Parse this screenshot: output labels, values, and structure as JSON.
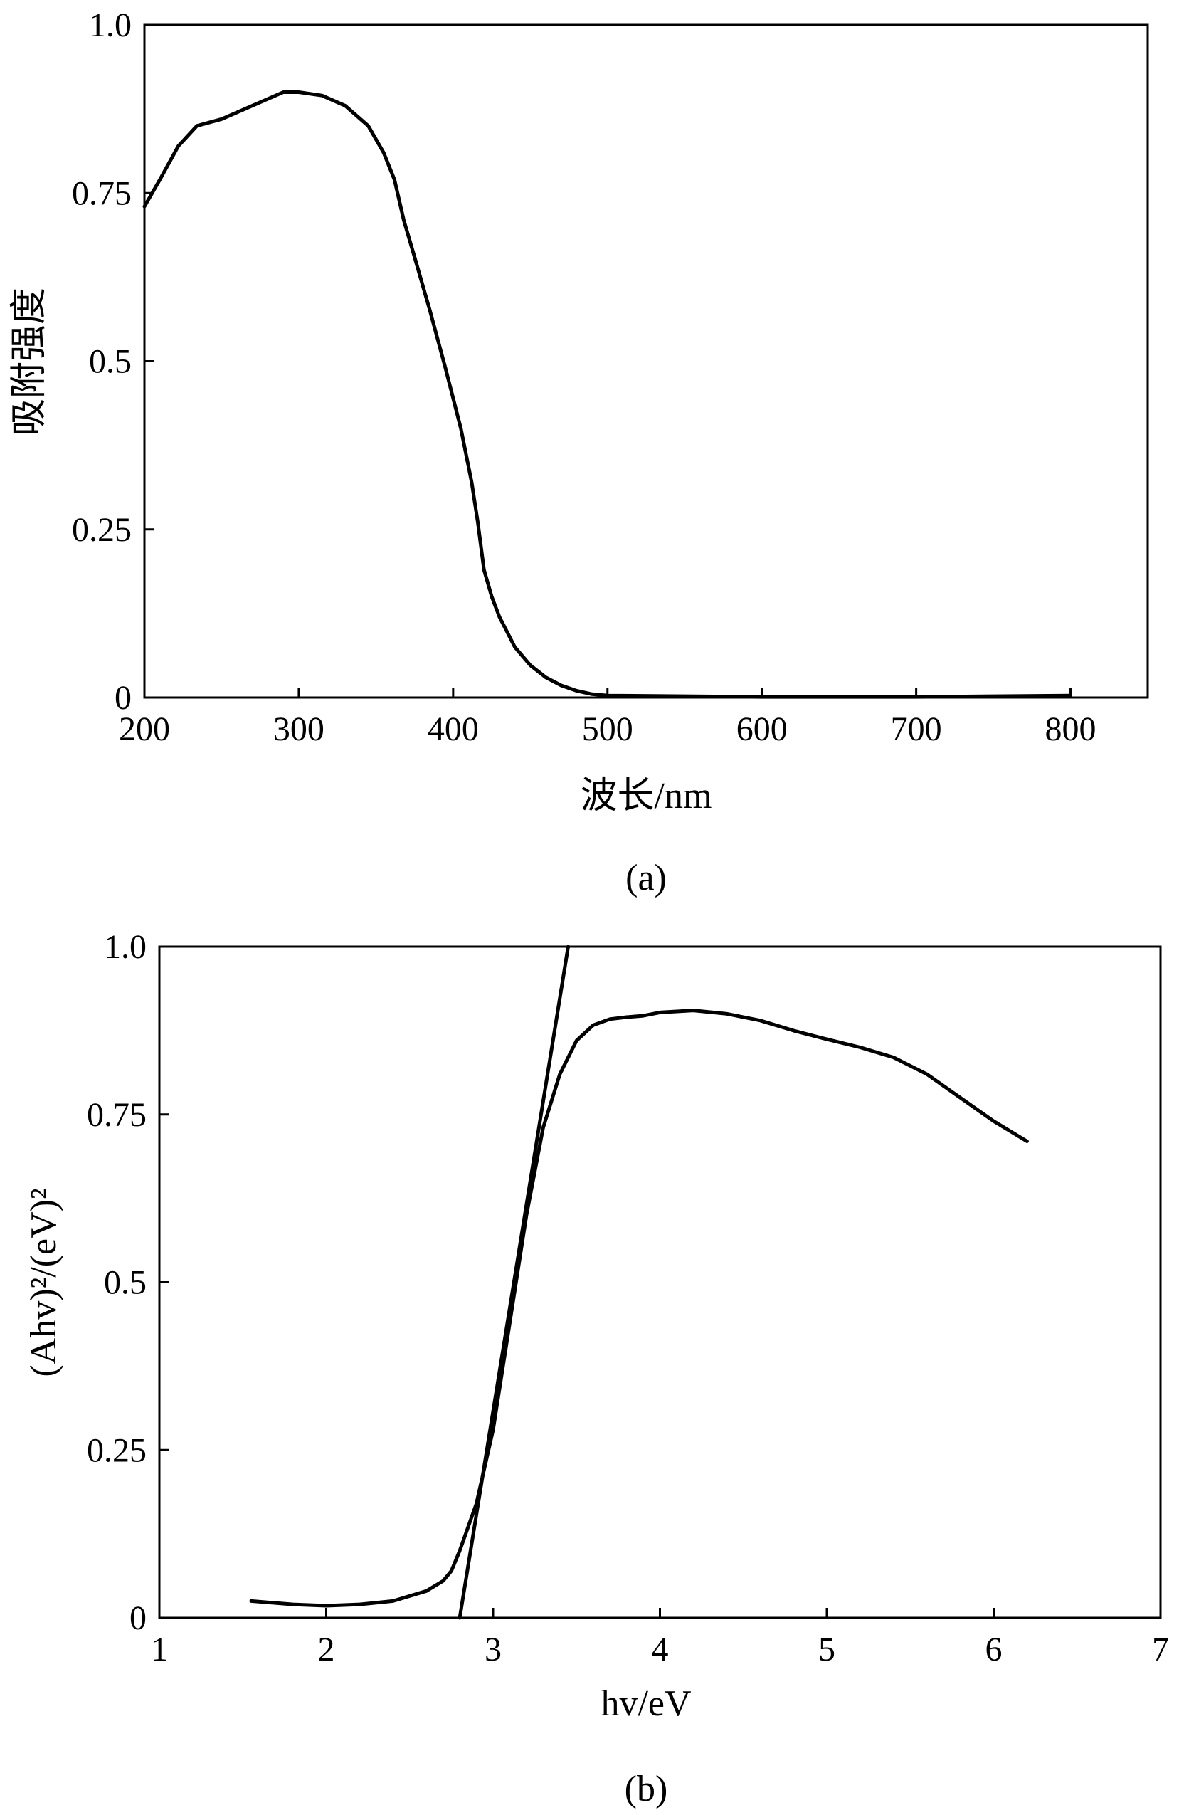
{
  "chart_data": [
    {
      "id": "a",
      "type": "line",
      "caption": "(a)",
      "xlabel": "波长/nm",
      "ylabel": "吸附强度",
      "xlim": [
        200,
        850
      ],
      "ylim": [
        0,
        1.0
      ],
      "xticks": [
        200,
        300,
        400,
        500,
        600,
        700,
        800
      ],
      "yticks": [
        0,
        0.25,
        0.5,
        0.75,
        1.0
      ],
      "xtick_labels": [
        "200",
        "300",
        "400",
        "500",
        "600",
        "700",
        "800"
      ],
      "ytick_labels": [
        "0",
        "0.25",
        "0.5",
        "0.75",
        "1.0"
      ],
      "grid": false,
      "series": [
        {
          "x": [
            200,
            210,
            222,
            234,
            250,
            270,
            290,
            300,
            315,
            330,
            345,
            355,
            362,
            368,
            375,
            385,
            395,
            405,
            412,
            416,
            420,
            425,
            430,
            440,
            450,
            460,
            470,
            480,
            490,
            500,
            550,
            600,
            650,
            700,
            750,
            800
          ],
          "y": [
            0.73,
            0.77,
            0.82,
            0.85,
            0.86,
            0.88,
            0.9,
            0.9,
            0.895,
            0.88,
            0.85,
            0.81,
            0.77,
            0.71,
            0.655,
            0.575,
            0.49,
            0.4,
            0.32,
            0.26,
            0.19,
            0.15,
            0.12,
            0.075,
            0.048,
            0.03,
            0.018,
            0.01,
            0.005,
            0.003,
            0.002,
            0.001,
            0.001,
            0.001,
            0.002,
            0.003
          ]
        }
      ]
    },
    {
      "id": "b",
      "type": "line",
      "caption": "(b)",
      "xlabel": "hv/eV",
      "ylabel": "(Ahv)²/(eV)²",
      "xlim": [
        1,
        7
      ],
      "ylim": [
        0,
        1.0
      ],
      "xticks": [
        1,
        2,
        3,
        4,
        5,
        6,
        7
      ],
      "yticks": [
        0,
        0.25,
        0.5,
        0.75,
        1.0
      ],
      "xtick_labels": [
        "1",
        "2",
        "3",
        "4",
        "5",
        "6",
        "7"
      ],
      "ytick_labels": [
        "0",
        "0.25",
        "0.5",
        "0.75",
        "1.0"
      ],
      "grid": false,
      "series": [
        {
          "x": [
            1.55,
            1.8,
            2.0,
            2.2,
            2.4,
            2.6,
            2.7,
            2.75,
            2.8,
            2.9,
            3.0,
            3.1,
            3.2,
            3.3,
            3.4,
            3.5,
            3.6,
            3.7,
            3.8,
            3.9,
            4.0,
            4.2,
            4.4,
            4.6,
            4.8,
            5.0,
            5.2,
            5.4,
            5.6,
            5.8,
            6.0,
            6.2
          ],
          "y": [
            0.025,
            0.02,
            0.018,
            0.02,
            0.025,
            0.04,
            0.055,
            0.07,
            0.1,
            0.17,
            0.28,
            0.44,
            0.6,
            0.73,
            0.81,
            0.86,
            0.883,
            0.892,
            0.895,
            0.897,
            0.902,
            0.905,
            0.9,
            0.89,
            0.875,
            0.862,
            0.85,
            0.835,
            0.81,
            0.775,
            0.74,
            0.71
          ]
        },
        {
          "x": [
            2.8,
            3.45
          ],
          "y": [
            0,
            1.0
          ]
        }
      ]
    }
  ]
}
